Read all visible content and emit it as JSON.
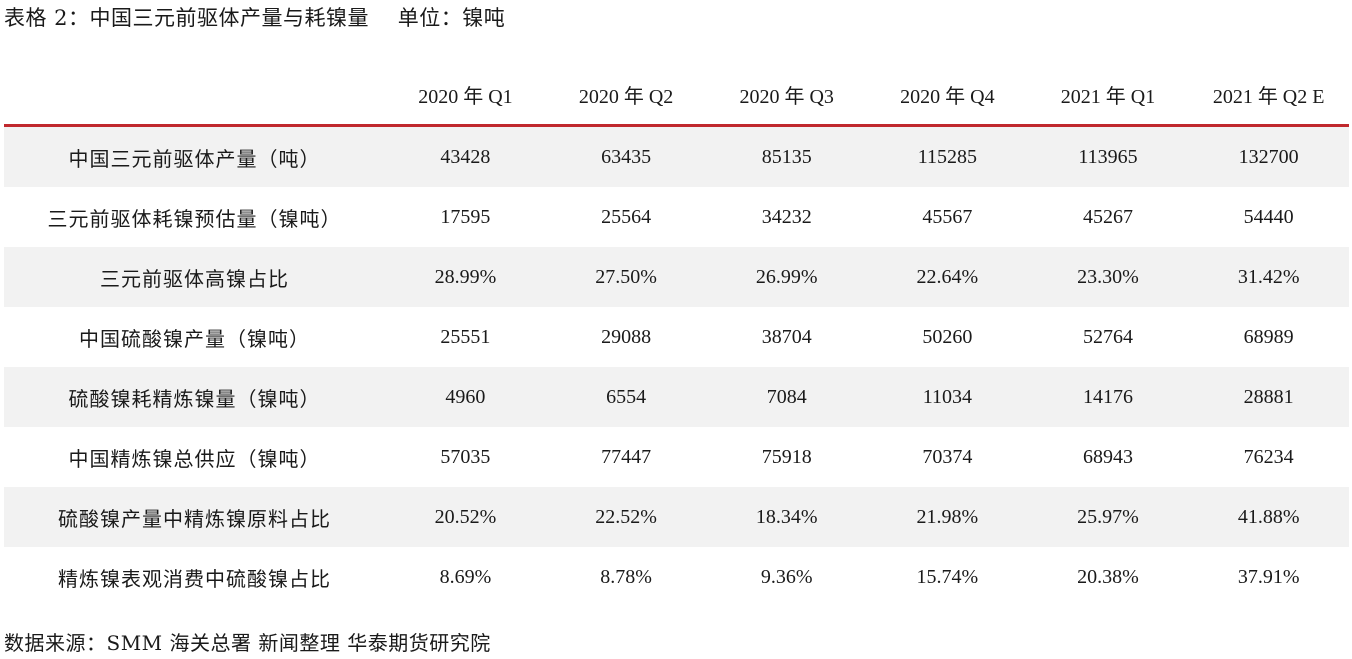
{
  "caption": "表格 2：中国三元前驱体产量与耗镍量    单位：镍吨",
  "table": {
    "headers": [
      "",
      "2020 年 Q1",
      "2020 年 Q2",
      "2020 年 Q3",
      "2020 年 Q4",
      "2021 年 Q1",
      "2021 年 Q2 E"
    ],
    "rows": [
      {
        "label": "中国三元前驱体产量（吨）",
        "values": [
          "43428",
          "63435",
          "85135",
          "115285",
          "113965",
          "132700"
        ]
      },
      {
        "label": "三元前驱体耗镍预估量（镍吨）",
        "values": [
          "17595",
          "25564",
          "34232",
          "45567",
          "45267",
          "54440"
        ]
      },
      {
        "label": "三元前驱体高镍占比",
        "values": [
          "28.99%",
          "27.50%",
          "26.99%",
          "22.64%",
          "23.30%",
          "31.42%"
        ]
      },
      {
        "label": "中国硫酸镍产量（镍吨）",
        "values": [
          "25551",
          "29088",
          "38704",
          "50260",
          "52764",
          "68989"
        ]
      },
      {
        "label": "硫酸镍耗精炼镍量（镍吨）",
        "values": [
          "4960",
          "6554",
          "7084",
          "11034",
          "14176",
          "28881"
        ]
      },
      {
        "label": "中国精炼镍总供应（镍吨）",
        "values": [
          "57035",
          "77447",
          "75918",
          "70374",
          "68943",
          "76234"
        ]
      },
      {
        "label": "硫酸镍产量中精炼镍原料占比",
        "values": [
          "20.52%",
          "22.52%",
          "18.34%",
          "21.98%",
          "25.97%",
          "41.88%"
        ]
      },
      {
        "label": "精炼镍表观消费中硫酸镍占比",
        "values": [
          "8.69%",
          "8.78%",
          "9.36%",
          "15.74%",
          "20.38%",
          "37.91%"
        ]
      }
    ]
  },
  "source": "数据来源：SMM 海关总署 新闻整理 华泰期货研究院",
  "colors": {
    "header_rule": "#c0282d",
    "stripe": "#f2f2f2"
  }
}
